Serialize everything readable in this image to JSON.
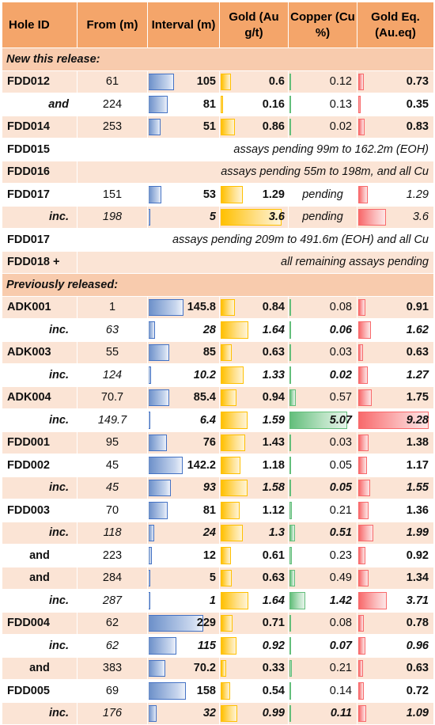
{
  "headers": {
    "hole_id": "Hole ID",
    "from": "From (m)",
    "interval": "Interval (m)",
    "gold": "Gold (Au g/t)",
    "copper": "Copper (Cu %)",
    "gold_eq": "Gold Eq. (Au.eq)"
  },
  "sections": {
    "new": "New this release:",
    "previous": "Previously released:"
  },
  "rows": [
    {
      "type": "section",
      "key": "new"
    },
    {
      "type": "data",
      "hole": "FDD012",
      "holeStyle": "main",
      "from": "61",
      "interval": "105",
      "gold": "0.6",
      "copper": "0.12",
      "goldeq": "0.73"
    },
    {
      "type": "data",
      "hole": "and",
      "holeStyle": "sub",
      "from": "224",
      "interval": "81",
      "gold": "0.16",
      "copper": "0.13",
      "goldeq": "0.35"
    },
    {
      "type": "data",
      "hole": "FDD014",
      "holeStyle": "main",
      "from": "253",
      "interval": "51",
      "gold": "0.86",
      "copper": "0.02",
      "goldeq": "0.83"
    },
    {
      "type": "note",
      "hole": "FDD015",
      "text": "assays pending 99m to 162.2m (EOH)"
    },
    {
      "type": "note",
      "hole": "FDD016",
      "text": "assays pending 55m to 198m, and all Cu"
    },
    {
      "type": "pending",
      "hole": "FDD017",
      "holeStyle": "main",
      "from": "151",
      "interval": "53",
      "gold": "1.29",
      "copper": "pending",
      "goldeq": "1.29"
    },
    {
      "type": "pending",
      "hole": "inc.",
      "holeStyle": "sub",
      "italic": true,
      "from": "198",
      "interval": "5",
      "gold": "3.6",
      "copper": "pending",
      "goldeq": "3.6"
    },
    {
      "type": "note",
      "hole": "FDD017",
      "text": "assays pending 209m to 491.6m (EOH) and all Cu"
    },
    {
      "type": "note",
      "hole": "FDD018 +",
      "text": "all remaining assays pending"
    },
    {
      "type": "section",
      "key": "previous"
    },
    {
      "type": "data",
      "hole": "ADK001",
      "holeStyle": "main",
      "from": "1",
      "interval": "145.8",
      "gold": "0.84",
      "copper": "0.08",
      "goldeq": "0.91"
    },
    {
      "type": "data",
      "hole": "inc.",
      "holeStyle": "sub",
      "italic": true,
      "from": "63",
      "interval": "28",
      "gold": "1.64",
      "copper": "0.06",
      "goldeq": "1.62"
    },
    {
      "type": "data",
      "hole": "ADK003",
      "holeStyle": "main",
      "from": "55",
      "interval": "85",
      "gold": "0.63",
      "copper": "0.03",
      "goldeq": "0.63"
    },
    {
      "type": "data",
      "hole": "inc.",
      "holeStyle": "sub",
      "italic": true,
      "from": "124",
      "interval": "10.2",
      "gold": "1.33",
      "copper": "0.02",
      "goldeq": "1.27"
    },
    {
      "type": "data",
      "hole": "ADK004",
      "holeStyle": "main",
      "from": "70.7",
      "interval": "85.4",
      "gold": "0.94",
      "copper": "0.57",
      "goldeq": "1.75"
    },
    {
      "type": "data",
      "hole": "inc.",
      "holeStyle": "sub",
      "italic": true,
      "from": "149.7",
      "interval": "6.4",
      "gold": "1.59",
      "copper": "5.07",
      "goldeq": "9.28"
    },
    {
      "type": "data",
      "hole": "FDD001",
      "holeStyle": "main",
      "from": "95",
      "interval": "76",
      "gold": "1.43",
      "copper": "0.03",
      "goldeq": "1.38"
    },
    {
      "type": "data",
      "hole": "FDD002",
      "holeStyle": "main",
      "from": "45",
      "interval": "142.2",
      "gold": "1.18",
      "copper": "0.05",
      "goldeq": "1.17"
    },
    {
      "type": "data",
      "hole": "inc.",
      "holeStyle": "sub",
      "italic": true,
      "from": "45",
      "interval": "93",
      "gold": "1.58",
      "copper": "0.05",
      "goldeq": "1.55"
    },
    {
      "type": "data",
      "hole": "FDD003",
      "holeStyle": "main",
      "from": "70",
      "interval": "81",
      "gold": "1.12",
      "copper": "0.21",
      "goldeq": "1.36"
    },
    {
      "type": "data",
      "hole": "inc.",
      "holeStyle": "sub",
      "italic": true,
      "from": "118",
      "interval": "24",
      "gold": "1.3",
      "copper": "0.51",
      "goldeq": "1.99"
    },
    {
      "type": "data",
      "hole": "and",
      "holeStyle": "and",
      "from": "223",
      "interval": "12",
      "gold": "0.61",
      "copper": "0.23",
      "goldeq": "0.92"
    },
    {
      "type": "data",
      "hole": "and",
      "holeStyle": "and",
      "from": "284",
      "interval": "5",
      "gold": "0.63",
      "copper": "0.49",
      "goldeq": "1.34"
    },
    {
      "type": "data",
      "hole": "inc.",
      "holeStyle": "sub",
      "italic": true,
      "from": "287",
      "interval": "1",
      "gold": "1.64",
      "copper": "1.42",
      "goldeq": "3.71"
    },
    {
      "type": "data",
      "hole": "FDD004",
      "holeStyle": "main",
      "from": "62",
      "interval": "229",
      "gold": "0.71",
      "copper": "0.08",
      "goldeq": "0.78"
    },
    {
      "type": "data",
      "hole": "inc.",
      "holeStyle": "sub",
      "italic": true,
      "from": "62",
      "interval": "115",
      "gold": "0.92",
      "copper": "0.07",
      "goldeq": "0.96"
    },
    {
      "type": "data",
      "hole": "and",
      "holeStyle": "and",
      "from": "383",
      "interval": "70.2",
      "gold": "0.33",
      "copper": "0.21",
      "goldeq": "0.63"
    },
    {
      "type": "data",
      "hole": "FDD005",
      "holeStyle": "main",
      "from": "69",
      "interval": "158",
      "gold": "0.54",
      "copper": "0.14",
      "goldeq": "0.72"
    },
    {
      "type": "data",
      "hole": "inc.",
      "holeStyle": "sub",
      "italic": true,
      "from": "176",
      "interval": "32",
      "gold": "0.99",
      "copper": "0.11",
      "goldeq": "1.09"
    }
  ],
  "bar_scales": {
    "interval_max": 300,
    "gold_max": 4.0,
    "copper_max": 6.0,
    "goldeq_max": 10.0
  },
  "colors": {
    "header": "#f4a56a",
    "section": "#f8cbad",
    "band": "#fbe4d5",
    "interval_bar": "#4472c4",
    "gold_bar": "#ffc000",
    "copper_bar": "#63be7b",
    "goldeq_bar": "#f8696b"
  }
}
